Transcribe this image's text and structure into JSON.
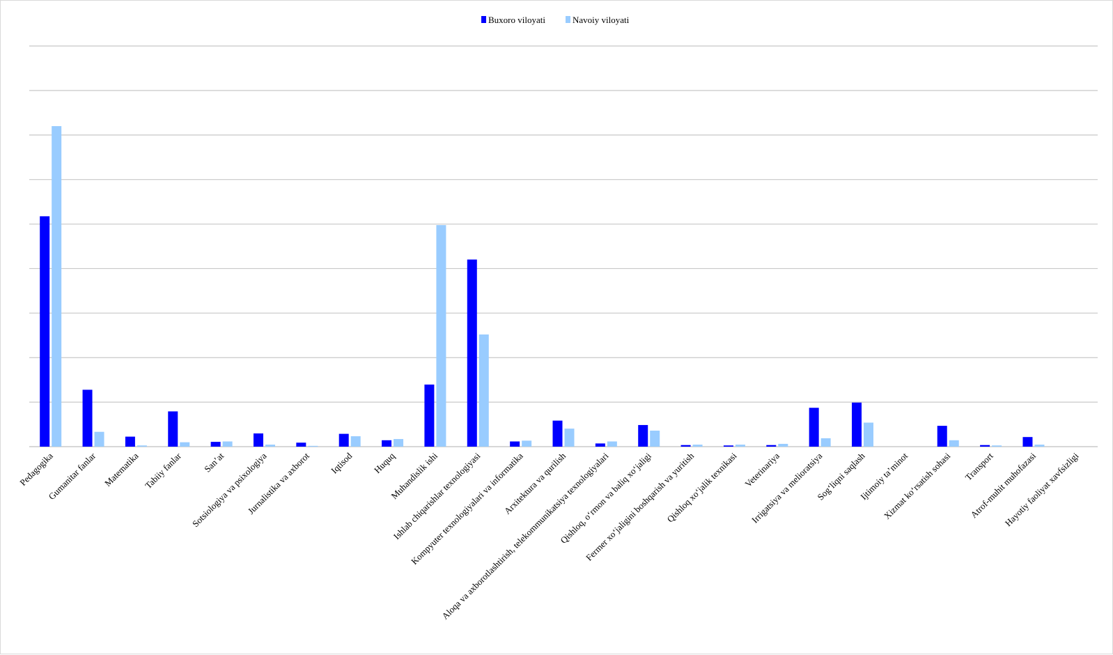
{
  "chart_data": {
    "type": "bar",
    "title": "",
    "xlabel": "",
    "ylabel": "",
    "ylim": [
      0,
      1000
    ],
    "y_tick_labels_visible": false,
    "grid": true,
    "legend": "top-center",
    "categories": [
      "Pedagogika",
      "Gumanitar fanlar",
      "Matematika",
      "Tabiiy fanlar",
      "San’at",
      "Sotsiologiya va psixologiya",
      "Jurnalistika va axborot",
      "Iqtisod",
      "Huquq",
      "Muhandislik ishi",
      "Ishlab chiqarishlar texnologiyasi",
      "Kompyuter texnologiyalari va informatika",
      "Arxitektura va qurilish",
      "Aloqa va axborotlashtirish, telekommunikatsiya texnologiyalari",
      "Qishloq, o‘rmon va baliq xo‘jaligi",
      "Fermer xo‘jaligini  boshqarish va yuritish",
      "Qishloq  xo‘jalik  texnikasi",
      "Veterinariya",
      "Irrigatsiya va melioratsiya",
      "Sog‘liqni  saqlash",
      "Ijtimoiy  ta’minot",
      "Xizmat  ko‘rsatish sohasi",
      "Transport",
      "Atrof-muhit muhofazasi",
      "Hayotiy faoliyat xavfsizligi"
    ],
    "series": [
      {
        "name": "Buxoro viloyati",
        "color": "#0000ff",
        "values": [
          575,
          142,
          25,
          88,
          12,
          33,
          10,
          32,
          16,
          155,
          467,
          13,
          65,
          8,
          54,
          4,
          3,
          4,
          97,
          110,
          0,
          52,
          4,
          24,
          0
        ]
      },
      {
        "name": "Navoiy viloyati",
        "color": "#99ccff",
        "values": [
          800,
          37,
          3,
          11,
          13,
          5,
          2,
          26,
          19,
          553,
          280,
          15,
          45,
          13,
          40,
          5,
          5,
          7,
          21,
          60,
          0,
          16,
          3,
          5,
          0
        ]
      }
    ]
  }
}
